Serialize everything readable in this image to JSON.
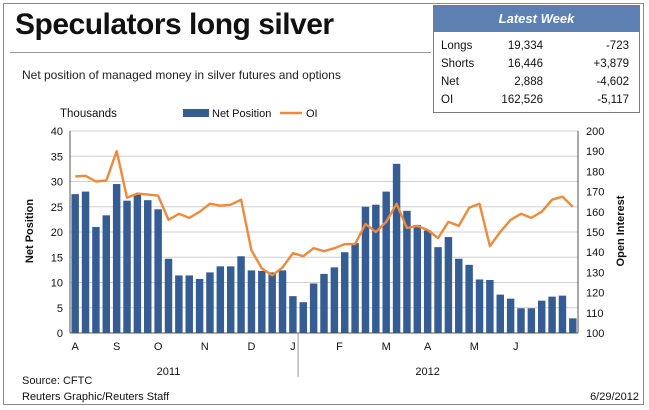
{
  "header": {
    "title": "Speculators long silver",
    "subtitle": "Net position of managed money in silver futures and options"
  },
  "latest_week": {
    "title": "Latest Week",
    "rows": [
      {
        "label": "Longs",
        "value": "19,334",
        "change": "-723"
      },
      {
        "label": "Shorts",
        "value": "16,446",
        "change": "+3,879"
      },
      {
        "label": "Net",
        "value": "2,888",
        "change": "-4,602"
      },
      {
        "label": "OI",
        "value": "162,526",
        "change": "-5,117"
      }
    ]
  },
  "footer": {
    "source": "Source: CFTC",
    "credit": "Reuters Graphic/Reuters Staff",
    "date": "6/29/2012"
  },
  "colors": {
    "bars": "#355d94",
    "line": "#ee8a3a",
    "header_fill": "#5b80b1"
  },
  "chart_data": {
    "type": "bar+line",
    "units_label": "Thousands",
    "ylabel_left": "Net Position",
    "ylabel_right": "Open Interest",
    "ylim_left": [
      0,
      40
    ],
    "yticks_left": [
      0,
      5,
      10,
      15,
      20,
      25,
      30,
      35,
      40
    ],
    "ylim_right": [
      100,
      200
    ],
    "yticks_right": [
      100,
      110,
      120,
      130,
      140,
      150,
      160,
      170,
      180,
      190,
      200
    ],
    "grid": true,
    "legend": "top-center",
    "month_labels": [
      {
        "label": "A",
        "index": 0.5
      },
      {
        "label": "S",
        "index": 4.5
      },
      {
        "label": "O",
        "index": 8.5
      },
      {
        "label": "N",
        "index": 13.0
      },
      {
        "label": "D",
        "index": 17.5
      },
      {
        "label": "J",
        "index": 21.5
      },
      {
        "label": "F",
        "index": 26.0
      },
      {
        "label": "M",
        "index": 30.5
      },
      {
        "label": "A",
        "index": 34.5
      },
      {
        "label": "M",
        "index": 39.0
      },
      {
        "label": "J",
        "index": 43.0
      }
    ],
    "year_labels": [
      {
        "label": "2011",
        "index": 9.5
      },
      {
        "label": "2012",
        "index": 34.5
      }
    ],
    "series": [
      {
        "name": "Net Position",
        "type": "bar",
        "axis": "left",
        "values": [
          27.5,
          28.0,
          21.0,
          23.3,
          29.5,
          26.2,
          27.4,
          26.3,
          24.5,
          14.7,
          11.4,
          11.4,
          10.7,
          12.0,
          13.2,
          13.2,
          15.2,
          12.4,
          12.3,
          12.0,
          12.4,
          7.3,
          6.1,
          9.8,
          11.7,
          13.0,
          16.0,
          17.8,
          25.0,
          25.4,
          28.0,
          33.5,
          24.2,
          21.4,
          20.3,
          17.0,
          19.0,
          14.7,
          13.5,
          10.6,
          10.5,
          7.6,
          6.8,
          4.9,
          4.9,
          6.4,
          7.2,
          7.4,
          2.9
        ]
      },
      {
        "name": "OI",
        "type": "line",
        "axis": "right",
        "values": [
          177.5,
          177.8,
          175.0,
          175.5,
          190.0,
          167.0,
          169.0,
          168.5,
          168.0,
          156.0,
          159.0,
          157.0,
          160.0,
          164.0,
          163.0,
          163.5,
          166.0,
          141.0,
          132.0,
          128.5,
          132.5,
          139.5,
          138.0,
          142.0,
          140.5,
          142.0,
          144.0,
          144.0,
          154.0,
          150.0,
          155.0,
          164.0,
          152.0,
          153.0,
          151.0,
          147.0,
          155.0,
          153.0,
          162.0,
          164.0,
          143.0,
          150.0,
          156.0,
          159.0,
          157.0,
          160.0,
          166.0,
          167.5,
          162.5
        ]
      }
    ]
  }
}
